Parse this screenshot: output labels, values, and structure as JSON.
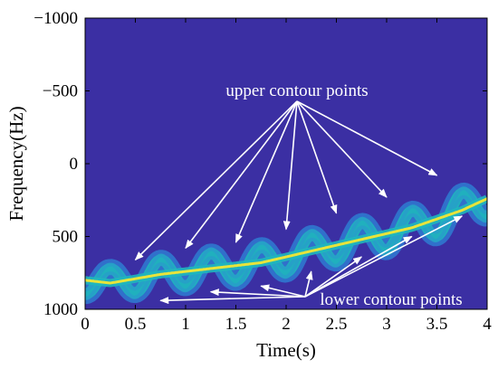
{
  "chart_data": {
    "type": "heatmap",
    "title": "",
    "xlabel": "Time(s)",
    "ylabel": "Frequency(Hz)",
    "xlim": [
      0,
      4
    ],
    "ylim": [
      -1000,
      1000
    ],
    "y_axis_inverted": true,
    "x_ticks": [
      0,
      0.5,
      1,
      1.5,
      2,
      2.5,
      3,
      3.5,
      4
    ],
    "x_tick_labels": [
      "0",
      "0.5",
      "1",
      "1.5",
      "2",
      "2.5",
      "3",
      "3.5",
      "4"
    ],
    "y_ticks": [
      -1000,
      -500,
      0,
      500,
      1000
    ],
    "y_tick_labels": [
      "−1000",
      "−500",
      "0",
      "500",
      "1000"
    ],
    "grid": false,
    "colors": {
      "background": "#3b2fa3",
      "outer_band": "#2f7bd2",
      "mid_band": "#1fb7bd",
      "ridge": "#e8e43a",
      "annotation": "#ffffff"
    },
    "series": [
      {
        "name": "",
        "description_curve": "ridge",
        "x": [
          0,
          0.25,
          0.5,
          0.75,
          1,
          1.25,
          1.5,
          1.75,
          2,
          2.25,
          2.5,
          2.75,
          3,
          3.25,
          3.5,
          3.75,
          4
        ],
        "y": [
          800,
          820,
          790,
          760,
          740,
          720,
          700,
          680,
          640,
          600,
          560,
          520,
          480,
          440,
          380,
          320,
          240
        ]
      }
    ],
    "upper_contour_points": {
      "label": "upper contour points",
      "x": [
        0.5,
        1.0,
        1.5,
        2.0,
        2.5,
        3.0,
        3.5
      ],
      "y": [
        660,
        580,
        540,
        450,
        340,
        230,
        80
      ]
    },
    "lower_contour_points": {
      "label": "lower contour points",
      "x": [
        0.75,
        1.25,
        1.75,
        2.25,
        2.75,
        3.25,
        3.75
      ],
      "y": [
        940,
        880,
        840,
        740,
        640,
        500,
        360
      ]
    }
  }
}
